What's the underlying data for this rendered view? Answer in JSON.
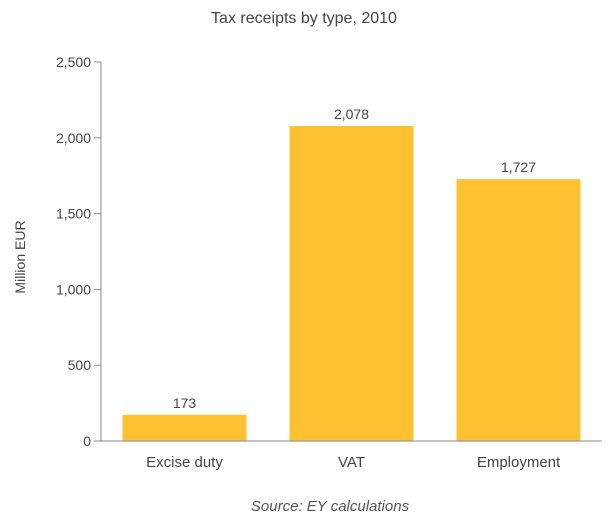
{
  "chart_data": {
    "type": "bar",
    "title": "Tax receipts by type, 2010",
    "ylabel": "Million EUR",
    "xlabel": "",
    "categories": [
      "Excise duty",
      "VAT",
      "Employment"
    ],
    "values": [
      173,
      2078,
      1727
    ],
    "data_labels": [
      "173",
      "2,078",
      "1,727"
    ],
    "ylim": [
      0,
      2500
    ],
    "yticks": [
      0,
      500,
      1000,
      1500,
      2000,
      2500
    ],
    "ytick_labels": [
      "0",
      "500",
      "1,000",
      "1,500",
      "2,000",
      "2,500"
    ],
    "grid": false,
    "legend": "none",
    "bar_color": "#FEC132",
    "source": "Source: EY calculations"
  }
}
